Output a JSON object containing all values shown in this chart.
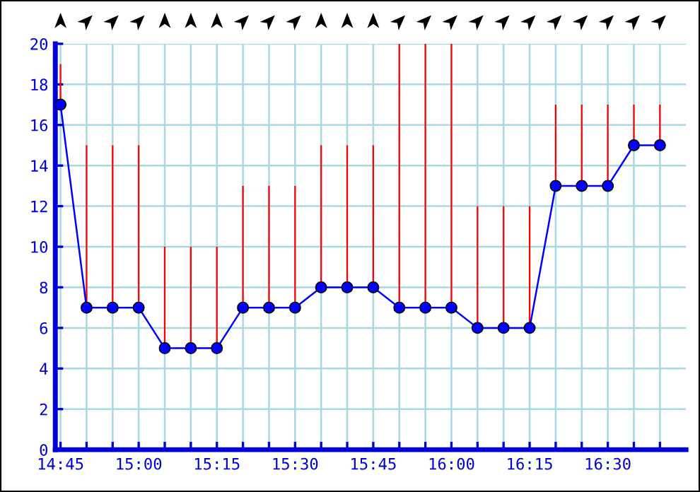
{
  "chart_data": {
    "type": "line",
    "categories": [
      "14:45",
      null,
      null,
      "15:00",
      null,
      null,
      "15:15",
      null,
      null,
      "15:30",
      null,
      null,
      "15:45",
      null,
      null,
      "16:00",
      null,
      null,
      "16:15",
      null,
      null,
      "16:30",
      null,
      null
    ],
    "series": [
      {
        "type": "bar",
        "color": "#ff0000",
        "base": [
          17,
          7,
          7,
          7,
          5,
          5,
          5,
          7,
          7,
          7,
          8,
          8,
          8,
          7,
          7,
          7,
          6,
          6,
          6,
          13,
          13,
          13,
          15,
          15
        ],
        "values": [
          2,
          8,
          8,
          8,
          5,
          5,
          5,
          6,
          6,
          6,
          7,
          7,
          7,
          13,
          13,
          13,
          6,
          6,
          6,
          4,
          4,
          4,
          2,
          2
        ]
      },
      {
        "color": "#0000ff",
        "values": [
          17,
          7,
          7,
          7,
          5,
          5,
          5,
          7,
          7,
          7,
          8,
          8,
          8,
          7,
          7,
          7,
          6,
          6,
          6,
          13,
          13,
          13,
          15,
          15
        ]
      }
    ],
    "ylim": [
      0,
      20
    ],
    "yticks": [
      0,
      2,
      4,
      6,
      8,
      10,
      12,
      14,
      16,
      18,
      20
    ],
    "grid": true,
    "marker": "circle",
    "line_style": "solid"
  }
}
